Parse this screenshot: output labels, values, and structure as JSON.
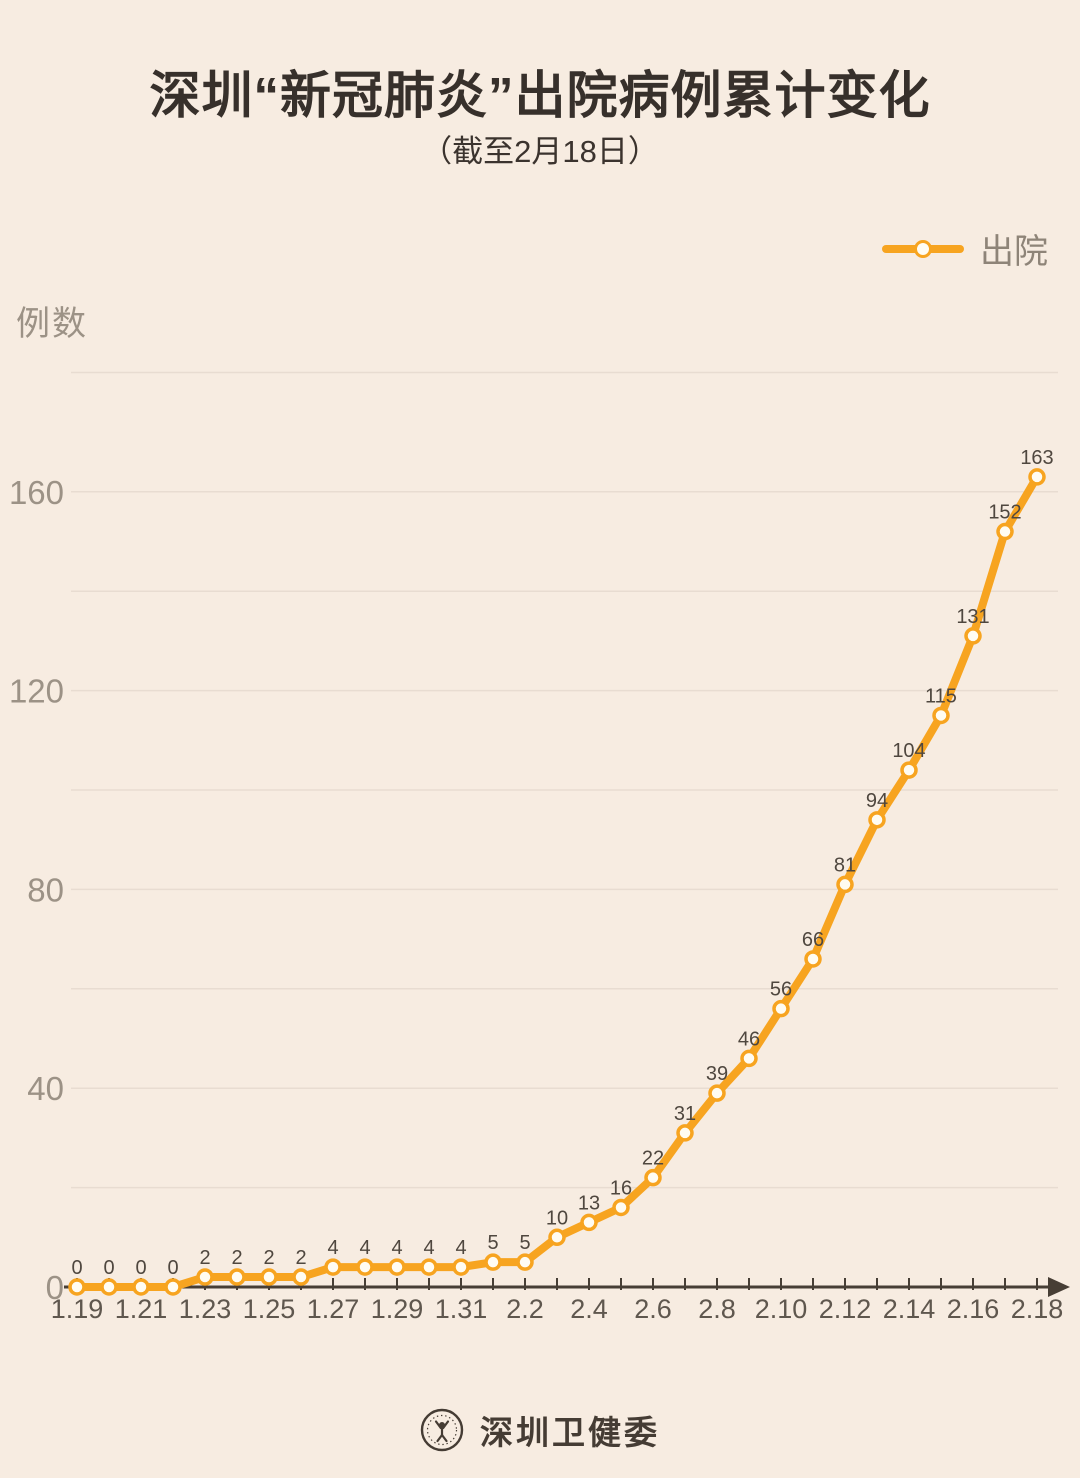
{
  "page": {
    "background_color": "#f7ece1"
  },
  "header": {
    "title": "深圳“新冠肺炎”出院病例累计变化",
    "subtitle": "（截至2月18日）"
  },
  "legend": {
    "label": "出院"
  },
  "footer": {
    "org_name": "深圳卫健委"
  },
  "chart_data": {
    "type": "line",
    "title": "深圳“新冠肺炎”出院病例累计变化",
    "subtitle": "截至2月18日",
    "ylabel": "例数",
    "xlabel": "",
    "categories": [
      "1.19",
      "1.20",
      "1.21",
      "1.22",
      "1.23",
      "1.24",
      "1.25",
      "1.26",
      "1.27",
      "1.28",
      "1.29",
      "1.30",
      "1.31",
      "2.1",
      "2.2",
      "2.3",
      "2.4",
      "2.5",
      "2.6",
      "2.7",
      "2.8",
      "2.9",
      "2.10",
      "2.11",
      "2.12",
      "2.13",
      "2.14",
      "2.15",
      "2.16",
      "2.17",
      "2.18"
    ],
    "series": [
      {
        "name": "出院",
        "values": [
          0,
          0,
          0,
          0,
          2,
          2,
          2,
          2,
          4,
          4,
          4,
          4,
          4,
          5,
          5,
          10,
          13,
          16,
          22,
          31,
          39,
          46,
          56,
          66,
          81,
          94,
          104,
          115,
          131,
          152,
          163
        ]
      }
    ],
    "y_ticks": [
      0,
      40,
      80,
      120,
      160
    ],
    "grid_interval": 20,
    "ylim": [
      0,
      184
    ],
    "x_label_interval": 2,
    "grid": true,
    "data_labels": true,
    "legend_position": "top-right",
    "colors": {
      "line": "#F7A420",
      "marker_fill": "#FFFCF2",
      "grid_line": "#E8DCD1",
      "axis_line": "#473E35",
      "y_tick_label": "#9C9286",
      "x_tick_label": "#5F574E",
      "data_label": "#4F473F"
    }
  }
}
